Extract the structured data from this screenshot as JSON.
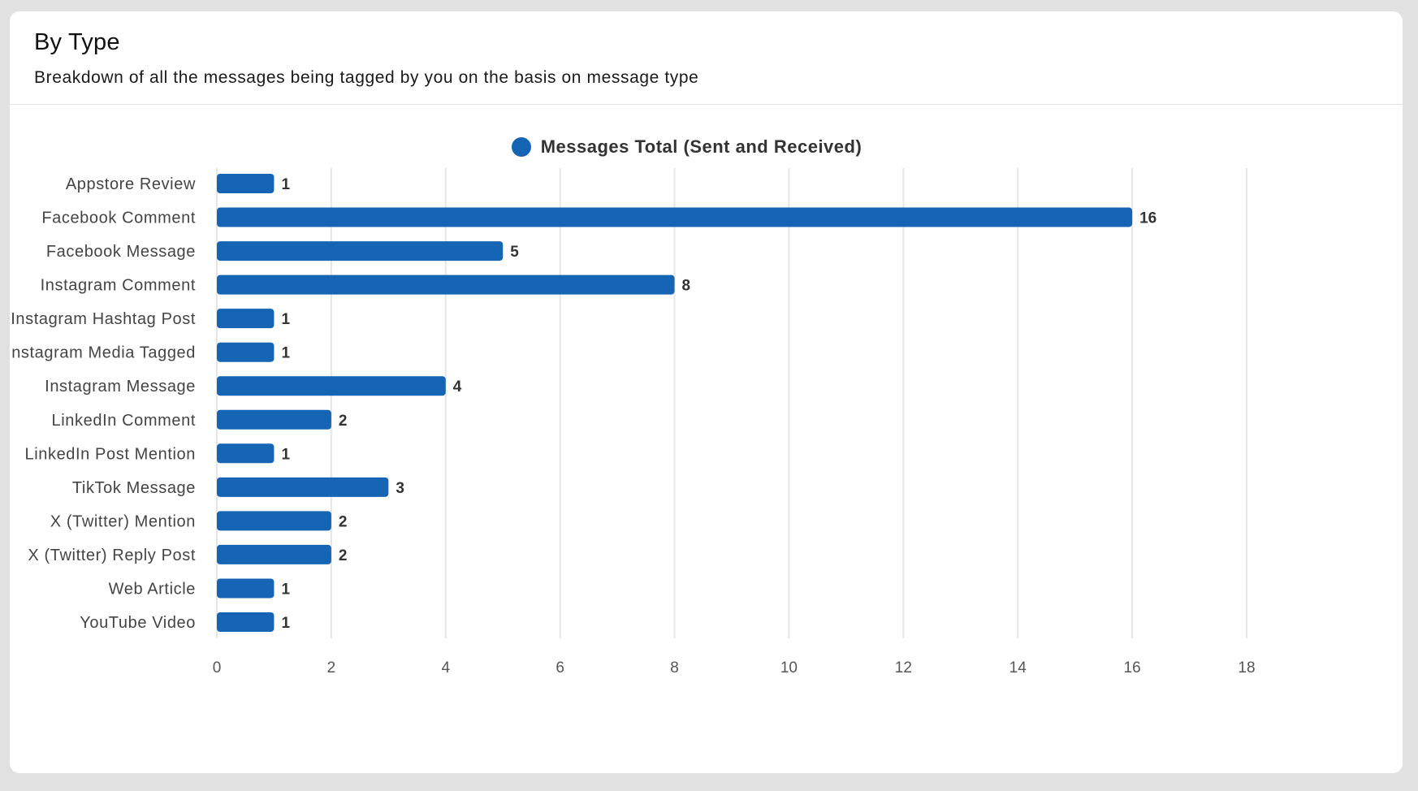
{
  "card": {
    "title": "By Type",
    "subtitle": "Breakdown of all the messages being tagged by you on the basis on message type"
  },
  "colors": {
    "page_background": "#e1e1e1",
    "card_background": "#ffffff",
    "bar": "#1565b4",
    "gridline": "#e6e6e6"
  },
  "chart_data": {
    "type": "bar",
    "orientation": "horizontal",
    "title": "",
    "xlabel": "",
    "ylabel": "",
    "categories": [
      "Appstore Review",
      "Facebook Comment",
      "Facebook Message",
      "Instagram Comment",
      "Instagram Hashtag Post",
      "Instagram Media Tagged",
      "Instagram Message",
      "LinkedIn Comment",
      "LinkedIn Post Mention",
      "TikTok Message",
      "X (Twitter) Mention",
      "X (Twitter) Reply Post",
      "Web Article",
      "YouTube Video"
    ],
    "series": [
      {
        "name": "Messages Total (Sent and Received)",
        "color": "#1565b4",
        "values": [
          1,
          16,
          5,
          8,
          1,
          1,
          4,
          2,
          1,
          3,
          2,
          2,
          1,
          1
        ]
      }
    ],
    "xlim": [
      0,
      18
    ],
    "xticks": [
      0,
      2,
      4,
      6,
      8,
      10,
      12,
      14,
      16,
      18
    ],
    "grid": true,
    "data_labels": true,
    "legend_position": "top-center"
  }
}
